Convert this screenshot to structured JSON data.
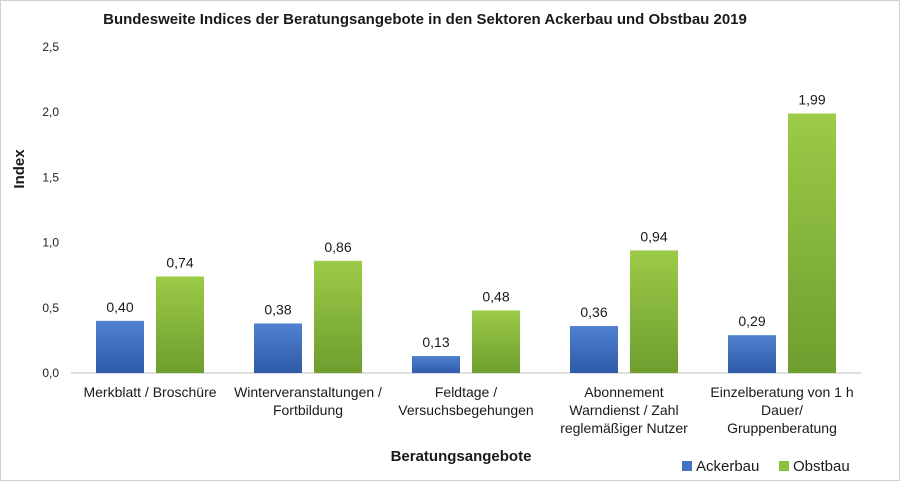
{
  "chart_data": {
    "type": "bar",
    "title": "Bundesweite Indices der Beratungsangebote in den Sektoren Ackerbau und Obstbau 2019",
    "xlabel": "Beratungsangebote",
    "ylabel": "Index",
    "ylim": [
      0,
      2.5
    ],
    "yticks": [
      0,
      0.5,
      1.0,
      1.5,
      2.0,
      2.5
    ],
    "ytick_labels": [
      "0,0",
      "0,5",
      "1,0",
      "1,5",
      "2,0",
      "2,5"
    ],
    "grid": false,
    "legend_position": "bottom-right",
    "categories": [
      [
        "Merkblatt / Broschüre"
      ],
      [
        "Winterveranstaltungen /",
        "Fortbildung"
      ],
      [
        "Feldtage /",
        "Versuchsbegehungen"
      ],
      [
        "Abonnement",
        "Warndienst / Zahl",
        "reglemäßiger Nutzer"
      ],
      [
        "Einzelberatung von 1 h",
        "Dauer/",
        "Gruppenberatung"
      ]
    ],
    "series": [
      {
        "name": "Ackerbau",
        "color": "#4472c4",
        "values": [
          0.4,
          0.38,
          0.13,
          0.36,
          0.29
        ],
        "labels": [
          "0,40",
          "0,38",
          "0,13",
          "0,36",
          "0,29"
        ]
      },
      {
        "name": "Obstbau",
        "color": "#8fbf3f",
        "values": [
          0.74,
          0.86,
          0.48,
          0.94,
          1.99
        ],
        "labels": [
          "0,74",
          "0,86",
          "0,48",
          "0,94",
          "1,99"
        ]
      }
    ]
  }
}
